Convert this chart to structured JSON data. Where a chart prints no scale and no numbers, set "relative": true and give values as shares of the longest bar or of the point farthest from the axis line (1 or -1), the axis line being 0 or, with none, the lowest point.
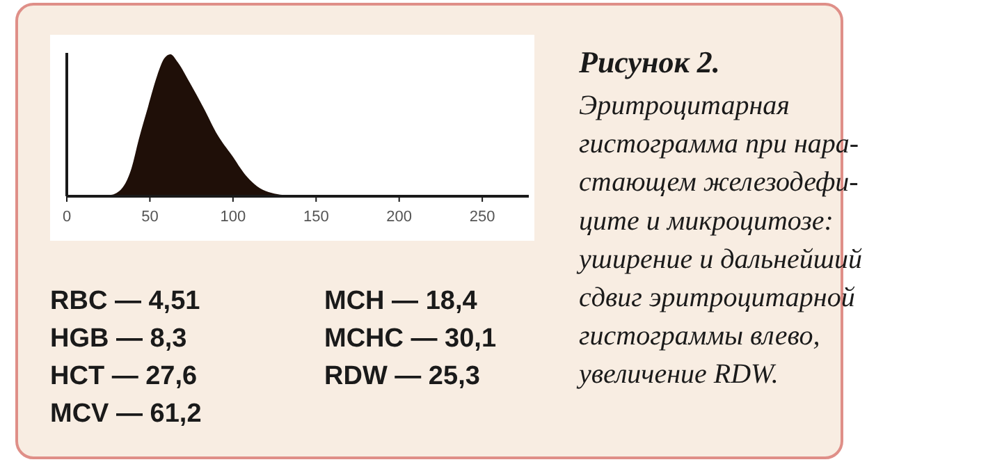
{
  "chart_data": {
    "type": "area",
    "title": "Рисунок 2.",
    "subtitle": "Эритроцитарная\nгистограмма при нара-\nстающем железодефи-\nците и микроцитозе:\nуширение и дальнейший\nсдвиг эритроцитарной\nгистограммы влево,\nувеличение RDW.",
    "relative": true,
    "series": [
      {
        "color": "#1f0f08",
        "x": [
          0,
          26.5,
          33.5,
          39,
          43.3,
          48.9,
          54.4,
          58.6,
          62.3,
          67,
          74,
          82.4,
          90.8,
          99.2,
          107.5,
          114.5,
          121.4,
          135.4,
          155,
          278
        ],
        "values": [
          0,
          0.01,
          0.06,
          0.2,
          0.4,
          0.63,
          0.85,
          0.97,
          1,
          0.94,
          0.8,
          0.62,
          0.43,
          0.29,
          0.15,
          0.07,
          0.03,
          0.005,
          0,
          0
        ]
      }
    ],
    "xlim": [
      0,
      278
    ],
    "xticks": [
      0,
      50,
      100,
      150,
      200,
      250
    ],
    "grid": false,
    "annotations": [
      "RBC — 4,51",
      "HGB — 8,3",
      "HCT — 27,6",
      "MCV — 61,2",
      "MCH — 18,4",
      "MCHC — 30,1",
      "RDW — 25,3"
    ]
  }
}
